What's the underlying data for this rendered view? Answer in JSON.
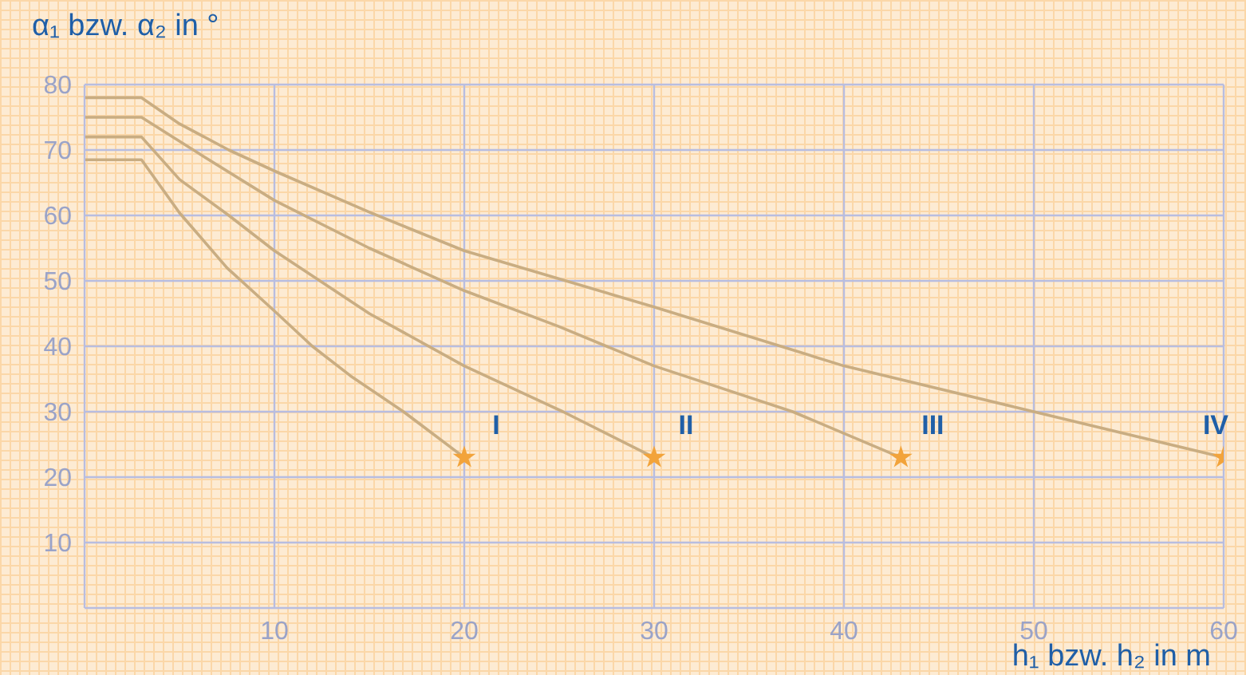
{
  "chart_data": {
    "type": "line",
    "xlabel": "h₁ bzw. h₂ in m",
    "ylabel": "α₁ bzw. α₂ in °",
    "xlim": [
      0,
      60
    ],
    "xticks": [
      10,
      20,
      30,
      40,
      50,
      60
    ],
    "ylim": [
      0,
      80
    ],
    "yticks": [
      10,
      20,
      30,
      40,
      50,
      60,
      70,
      80
    ],
    "grid": true,
    "marker": "none",
    "line_style": "solid",
    "series": [
      {
        "name": "I",
        "color": "#c9ad82",
        "x": [
          0,
          3,
          5,
          7.5,
          10,
          12,
          14,
          16.8,
          20
        ],
        "values": [
          68.5,
          68.5,
          60.4,
          52,
          45.4,
          40,
          35.5,
          30,
          23
        ]
      },
      {
        "name": "II",
        "color": "#c9ad82",
        "x": [
          0,
          3,
          5,
          7.6,
          10,
          15,
          20,
          25.2,
          30
        ],
        "values": [
          72,
          72,
          65.5,
          60,
          54.6,
          45,
          37,
          30,
          23
        ]
      },
      {
        "name": "III",
        "color": "#c9ad82",
        "x": [
          0,
          3,
          6,
          10,
          15,
          20,
          25,
          30,
          37.3,
          43
        ],
        "values": [
          75,
          75,
          69.5,
          62.3,
          55,
          48.5,
          43,
          37,
          30,
          23
        ]
      },
      {
        "name": "IV",
        "color": "#c9ad82",
        "x": [
          0,
          3,
          5,
          7.6,
          10,
          15,
          20,
          30,
          40,
          50,
          60
        ],
        "values": [
          78,
          78,
          74,
          70,
          66.8,
          60.5,
          54.6,
          46,
          37,
          30,
          23
        ]
      },
      {
        "type": "scatter",
        "color": "#f2a33a",
        "marker": "star",
        "x": [
          20,
          30,
          43,
          60
        ],
        "values": [
          23,
          23,
          23,
          23
        ]
      }
    ]
  }
}
